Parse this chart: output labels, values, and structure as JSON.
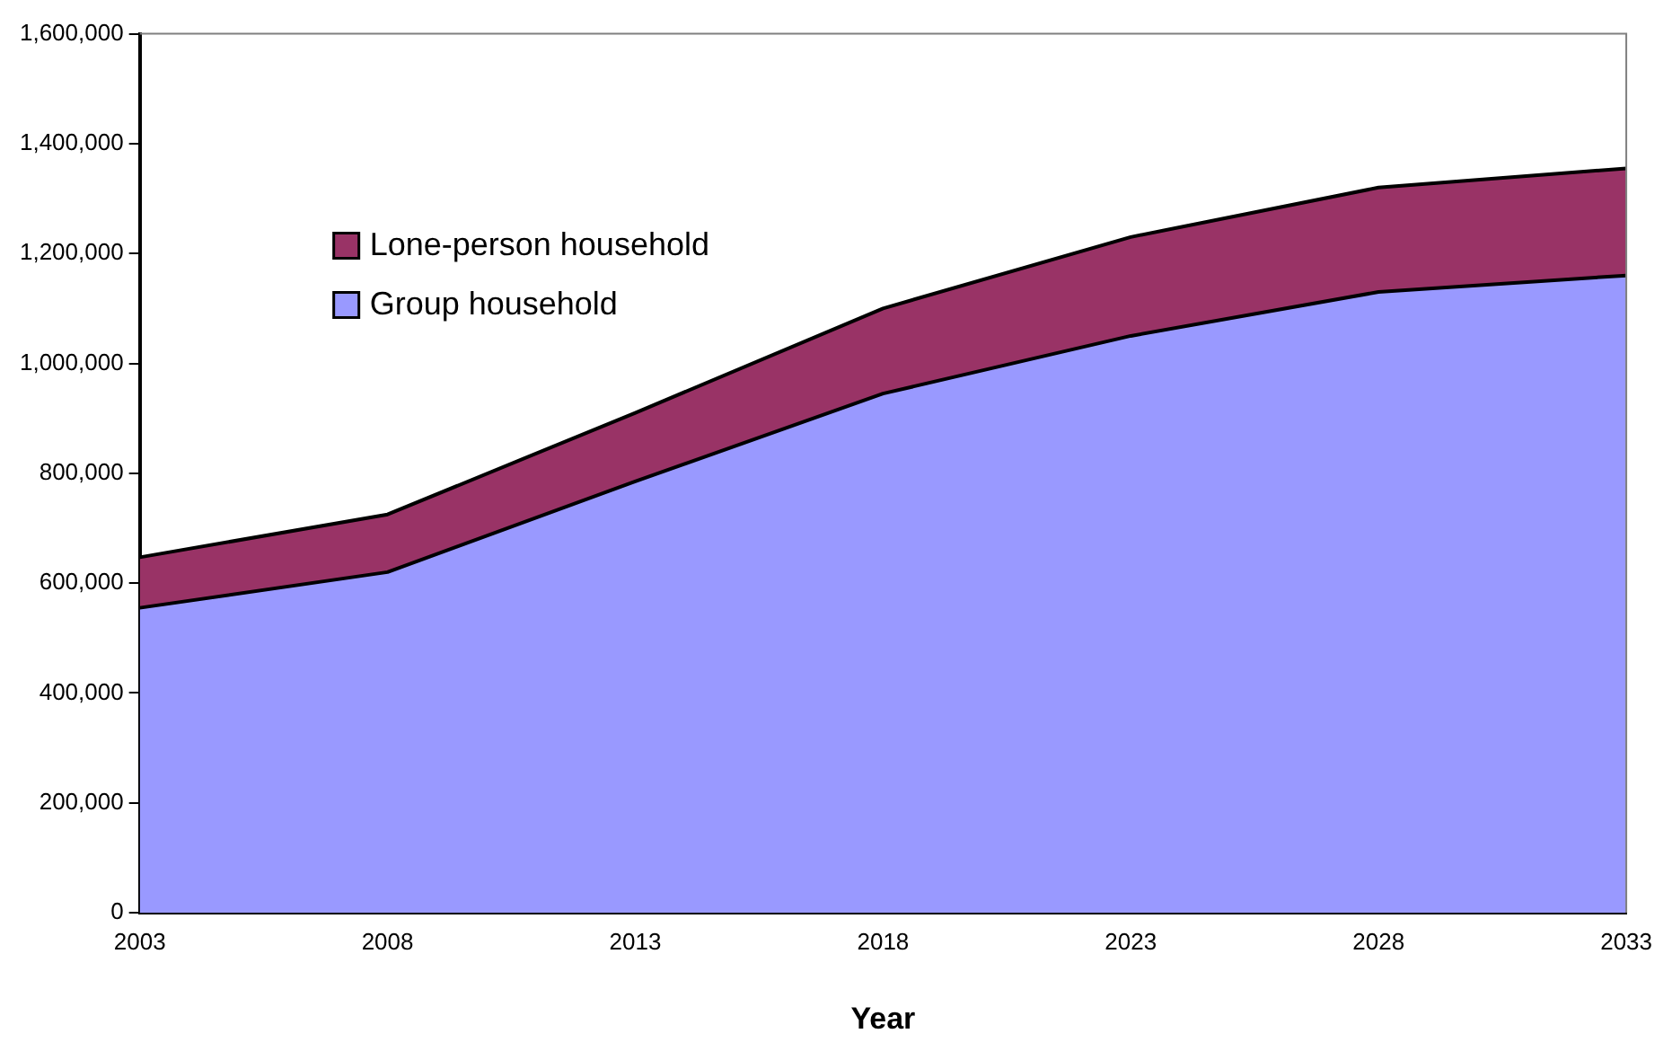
{
  "chart_data": {
    "type": "area",
    "xlabel": "Year",
    "x": [
      2003,
      2008,
      2013,
      2018,
      2023,
      2028,
      2033
    ],
    "stacked": true,
    "series": [
      {
        "name": "Group household",
        "color": "#9999ff",
        "values": [
          555000,
          620000,
          785000,
          945000,
          1050000,
          1130000,
          1160000
        ]
      },
      {
        "name": "Lone-person household",
        "color": "#993366",
        "values": [
          92000,
          105000,
          125000,
          155000,
          180000,
          190000,
          195000
        ]
      }
    ],
    "xlim": [
      2003,
      2033
    ],
    "xticks": [
      2003,
      2008,
      2013,
      2018,
      2023,
      2028,
      2033
    ],
    "ylim": [
      0,
      1600000
    ],
    "yticks": [
      0,
      {
        "value": 200000,
        "label": "200,000"
      },
      {
        "value": 400000,
        "label": "400,000"
      },
      {
        "value": 600000,
        "label": "600,000"
      },
      {
        "value": 800000,
        "label": "800,000"
      },
      {
        "value": 1000000,
        "label": "1,000,000"
      },
      {
        "value": 1200000,
        "label": "1,200,000"
      },
      {
        "value": 1400000,
        "label": "1,400,000"
      },
      {
        "value": 1600000,
        "label": "1,600,000"
      }
    ],
    "grid": false,
    "legend": "top left"
  }
}
